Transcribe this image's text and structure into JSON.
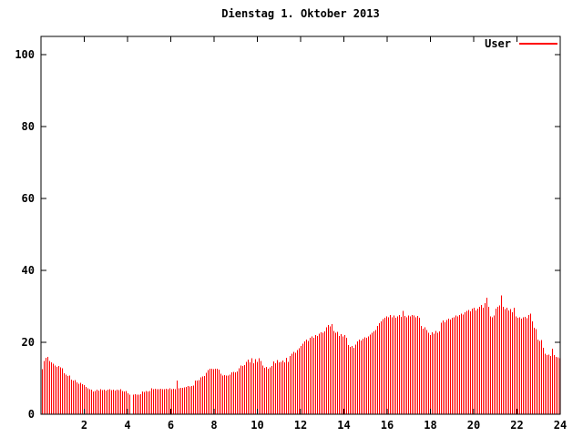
{
  "window": {
    "background": "#ffffff"
  },
  "chart_data": {
    "type": "bar",
    "subtype": "impulses",
    "title": "Dienstag 1. Oktober 2013",
    "xlabel": "",
    "ylabel": "",
    "xlim": [
      0,
      24
    ],
    "ylim": [
      0,
      105
    ],
    "x_ticks": [
      2,
      4,
      6,
      8,
      10,
      12,
      14,
      16,
      18,
      20,
      22,
      24
    ],
    "y_ticks": [
      0,
      20,
      40,
      60,
      80,
      100
    ],
    "grid": false,
    "legend_position": "top-right-inside",
    "axis_color": "#000000",
    "series": [
      {
        "name": "User",
        "color": "#ff0000",
        "x_unit": "hours",
        "sample_interval_minutes": 5,
        "values": [
          12.5,
          14.8,
          15.7,
          16.0,
          14.8,
          14.4,
          14.0,
          13.5,
          13.2,
          13.4,
          13.0,
          12.8,
          11.4,
          11.0,
          10.6,
          10.8,
          9.6,
          9.4,
          9.5,
          8.9,
          8.5,
          8.7,
          8.3,
          8.1,
          7.6,
          7.2,
          7.0,
          6.8,
          6.3,
          6.5,
          6.8,
          6.6,
          6.9,
          6.7,
          6.8,
          6.6,
          6.8,
          6.9,
          6.7,
          6.8,
          6.6,
          6.8,
          6.7,
          6.9,
          6.5,
          6.3,
          6.4,
          5.8,
          5.5,
          0,
          5.5,
          5.6,
          5.4,
          5.5,
          5.6,
          6.3,
          6.2,
          6.4,
          6.3,
          6.5,
          7.2,
          7.0,
          7.1,
          6.9,
          7.0,
          7.1,
          7.0,
          6.9,
          7.1,
          7.0,
          7.2,
          7.0,
          7.1,
          7.0,
          9.4,
          7.2,
          7.4,
          7.3,
          7.5,
          7.6,
          7.8,
          7.7,
          7.9,
          8.0,
          9.4,
          9.3,
          9.5,
          10.2,
          10.5,
          10.6,
          11.5,
          12.3,
          12.7,
          12.6,
          12.5,
          12.7,
          12.6,
          12.4,
          11.2,
          10.8,
          10.9,
          10.7,
          10.8,
          11.0,
          11.6,
          11.8,
          11.7,
          11.9,
          12.8,
          13.5,
          13.4,
          13.6,
          14.6,
          15.2,
          14.4,
          15.5,
          14.2,
          15.3,
          14.5,
          15.6,
          14.8,
          13.5,
          12.9,
          13.2,
          12.7,
          13.0,
          13.4,
          14.7,
          14.2,
          15.0,
          14.4,
          14.6,
          14.9,
          14.4,
          15.7,
          14.6,
          16.2,
          16.8,
          17.3,
          17.1,
          17.9,
          18.4,
          19.0,
          19.6,
          20.2,
          20.8,
          20.4,
          21.2,
          21.6,
          21.3,
          22.0,
          21.8,
          22.4,
          22.8,
          22.6,
          23.0,
          24.2,
          24.8,
          24.4,
          25.0,
          23.2,
          22.6,
          22.9,
          21.8,
          22.3,
          21.6,
          22.0,
          21.2,
          19.2,
          18.7,
          19.0,
          18.5,
          19.3,
          20.2,
          20.8,
          20.5,
          21.0,
          21.4,
          21.2,
          21.6,
          22.2,
          22.6,
          23.0,
          23.4,
          24.6,
          25.3,
          25.8,
          26.4,
          26.8,
          27.2,
          26.9,
          27.6,
          27.0,
          27.4,
          26.8,
          27.2,
          27.6,
          27.1,
          28.7,
          27.3,
          27.0,
          27.5,
          27.2,
          27.6,
          27.4,
          27.0,
          27.3,
          26.8,
          24.6,
          23.8,
          24.2,
          23.4,
          22.6,
          22.0,
          22.8,
          22.4,
          23.2,
          22.6,
          23.0,
          25.4,
          26.0,
          25.6,
          26.2,
          26.6,
          26.3,
          26.8,
          27.0,
          27.4,
          27.2,
          27.6,
          28.0,
          27.7,
          28.3,
          28.7,
          29.0,
          28.6,
          29.3,
          29.6,
          28.9,
          29.4,
          29.8,
          30.4,
          29.6,
          30.9,
          32.4,
          29.8,
          27.2,
          27.0,
          27.4,
          29.4,
          29.8,
          30.2,
          33.0,
          29.8,
          29.2,
          29.6,
          28.8,
          29.2,
          28.4,
          29.6,
          27.2,
          26.8,
          27.0,
          26.6,
          26.9,
          27.1,
          26.7,
          27.6,
          28.0,
          25.8,
          24.0,
          23.6,
          20.8,
          20.4,
          20.6,
          18.5,
          16.8,
          16.4,
          16.6,
          16.2,
          18.2,
          16.5,
          16.0,
          15.8,
          15.5
        ]
      }
    ]
  }
}
